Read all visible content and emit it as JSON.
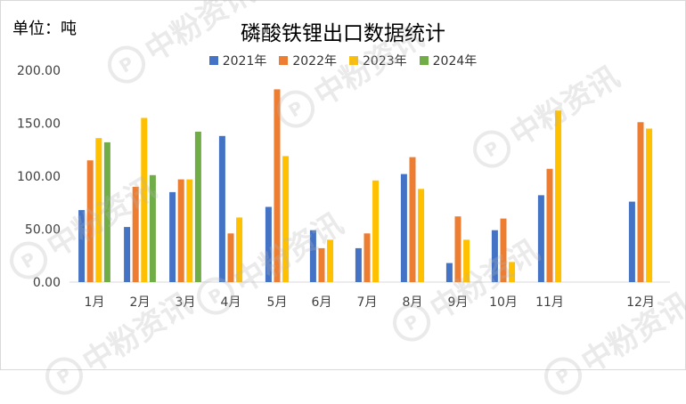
{
  "unit_label": "单位：吨",
  "watermark_text": "中粉资讯",
  "chart_data": {
    "type": "bar",
    "title": "磷酸铁锂出口数据统计",
    "categories": [
      "1月",
      "2月",
      "3月",
      "4月",
      "5月",
      "6月",
      "7月",
      "8月",
      "9月",
      "10月",
      "11月",
      "12月"
    ],
    "series": [
      {
        "name": "2021年",
        "color": "#4472C4",
        "values": [
          68,
          52,
          85,
          138,
          71,
          49,
          32,
          102,
          18,
          49,
          82,
          76
        ]
      },
      {
        "name": "2022年",
        "color": "#ED7D31",
        "values": [
          115,
          90,
          97,
          46,
          182,
          32,
          46,
          118,
          62,
          60,
          107,
          151
        ]
      },
      {
        "name": "2023年",
        "color": "#FFC000",
        "values": [
          136,
          155,
          97,
          61,
          119,
          40,
          96,
          88,
          40,
          19,
          162,
          145
        ]
      },
      {
        "name": "2024年",
        "color": "#70AD47",
        "values": [
          132,
          101,
          142,
          null,
          null,
          null,
          null,
          null,
          null,
          null,
          null,
          null
        ]
      }
    ],
    "yticks": [
      "0.00",
      "50.00",
      "100.00",
      "150.00",
      "200.00"
    ],
    "ylim": [
      0,
      200
    ],
    "legend_position": "top",
    "grid": false
  }
}
